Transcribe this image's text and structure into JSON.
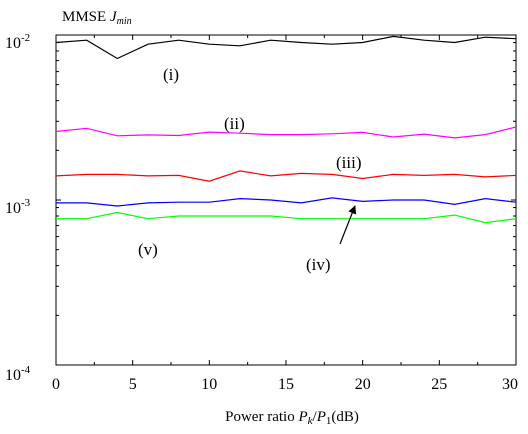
{
  "chart_data": {
    "type": "line",
    "title": "",
    "ylabel": {
      "text": "MMSE ",
      "var": "J",
      "sub": "min"
    },
    "xlabel": {
      "pre": "Power ratio ",
      "v1": "P",
      "s1": "k",
      "slash": "/",
      "v2": "P",
      "s2": "1",
      "post": "(dB)"
    },
    "xlim": [
      0,
      30
    ],
    "ylim": [
      0.0001,
      0.01
    ],
    "yscale": "log",
    "xticks": [
      "0",
      "5",
      "10",
      "15",
      "20",
      "25",
      "30"
    ],
    "yticks": [
      {
        "base": "10",
        "exp": "-2",
        "value": 0.01
      },
      {
        "base": "10",
        "exp": "-3",
        "value": 0.001
      },
      {
        "base": "10",
        "exp": "-4",
        "value": 0.0001
      }
    ],
    "x": [
      0,
      2,
      4,
      6,
      8,
      10,
      12,
      14,
      16,
      18,
      20,
      22,
      24,
      26,
      28,
      30
    ],
    "series": [
      {
        "name": "(i)",
        "color": "#000000",
        "values": [
          0.009,
          0.0093,
          0.0072,
          0.0088,
          0.0093,
          0.0088,
          0.0086,
          0.0093,
          0.009,
          0.0088,
          0.009,
          0.0098,
          0.0093,
          0.009,
          0.0097,
          0.0095
        ]
      },
      {
        "name": "(ii)",
        "color": "#ff00ff",
        "values": [
          0.0026,
          0.00272,
          0.00245,
          0.00248,
          0.00246,
          0.00258,
          0.00254,
          0.00249,
          0.00249,
          0.00252,
          0.00257,
          0.00241,
          0.00251,
          0.00238,
          0.00249,
          0.00277
        ]
      },
      {
        "name": "(iii)",
        "color": "#ff0000",
        "values": [
          0.0014,
          0.00143,
          0.00143,
          0.0014,
          0.00141,
          0.0013,
          0.0015,
          0.0014,
          0.00145,
          0.00143,
          0.00135,
          0.00143,
          0.00141,
          0.00143,
          0.00138,
          0.00141
        ]
      },
      {
        "name": "(iv)",
        "color": "#0000ff",
        "values": [
          0.00096,
          0.00096,
          0.00092,
          0.00096,
          0.00097,
          0.00097,
          0.00102,
          0.001,
          0.00096,
          0.00103,
          0.00098,
          0.001,
          0.001,
          0.00094,
          0.00102,
          0.00097
        ]
      },
      {
        "name": "(v)",
        "color": "#00ff00",
        "values": [
          0.00077,
          0.00077,
          0.00084,
          0.00077,
          0.0008,
          0.0008,
          0.0008,
          0.0008,
          0.00077,
          0.00077,
          0.00077,
          0.00077,
          0.00077,
          0.00081,
          0.00073,
          0.00077
        ]
      }
    ],
    "annotations": [
      {
        "text": "(i)",
        "series": "(i)"
      },
      {
        "text": "(ii)",
        "series": "(ii)"
      },
      {
        "text": "(iii)",
        "series": "(iii)"
      },
      {
        "text": "(iv)",
        "series": "(iv)",
        "arrow": true
      },
      {
        "text": "(v)",
        "series": "(v)"
      }
    ],
    "grid": false,
    "legend": "none"
  }
}
